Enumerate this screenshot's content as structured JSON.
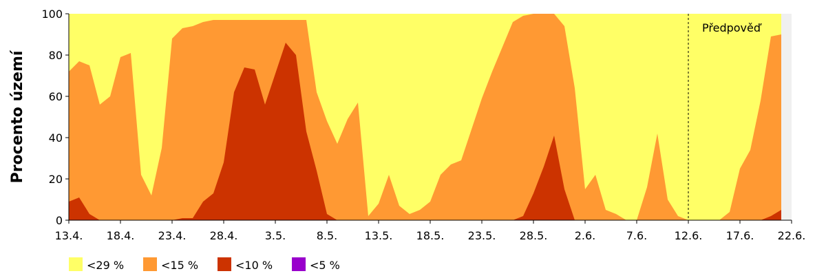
{
  "chart_data": {
    "type": "area",
    "y_label": "Procento území",
    "categories": [
      "13.4.",
      null,
      null,
      null,
      null,
      "18.4.",
      null,
      null,
      null,
      null,
      "23.4.",
      null,
      null,
      null,
      null,
      "28.4.",
      null,
      null,
      null,
      null,
      "3.5.",
      null,
      null,
      null,
      null,
      "8.5.",
      null,
      null,
      null,
      null,
      "13.5.",
      null,
      null,
      null,
      null,
      "18.5.",
      null,
      null,
      null,
      null,
      "23.5.",
      null,
      null,
      null,
      null,
      "28.5.",
      null,
      null,
      null,
      null,
      "2.6.",
      null,
      null,
      null,
      null,
      "7.6.",
      null,
      null,
      null,
      null,
      "12.6.",
      null,
      null,
      null,
      null,
      "17.6.",
      null,
      null,
      null,
      null,
      "22.6."
    ],
    "series": [
      {
        "name": "<29 %",
        "color": "#ffff66",
        "values": [
          100,
          100,
          100,
          100,
          100,
          100,
          100,
          100,
          100,
          100,
          100,
          100,
          100,
          100,
          100,
          100,
          100,
          100,
          100,
          100,
          100,
          100,
          100,
          100,
          100,
          100,
          100,
          100,
          100,
          100,
          100,
          100,
          100,
          100,
          100,
          100,
          100,
          100,
          100,
          100,
          100,
          100,
          100,
          100,
          100,
          100,
          100,
          100,
          100,
          100,
          100,
          100,
          100,
          100,
          100,
          100,
          100,
          100,
          100,
          100,
          100,
          100,
          100,
          100,
          100,
          100,
          100,
          100,
          100,
          100,
          null
        ]
      },
      {
        "name": "<15 %",
        "color": "#ff9933",
        "values": [
          72,
          77,
          75,
          56,
          60,
          79,
          81,
          22,
          12,
          35,
          88,
          93,
          94,
          96,
          97,
          97,
          97,
          97,
          97,
          97,
          97,
          97,
          97,
          97,
          62,
          48,
          37,
          49,
          57,
          2,
          8,
          22,
          7,
          3,
          5,
          9,
          22,
          27,
          29,
          44,
          59,
          72,
          84,
          96,
          99,
          100,
          100,
          100,
          94,
          64,
          15,
          22,
          5,
          3,
          0,
          0,
          16,
          42,
          10,
          2,
          0,
          0,
          0,
          0,
          4,
          25,
          34,
          58,
          89,
          90,
          null
        ]
      },
      {
        "name": "<10 %",
        "color": "#cc3300",
        "values": [
          9,
          11,
          3,
          0,
          0,
          0,
          0,
          0,
          0,
          0,
          0,
          1,
          1,
          9,
          13,
          28,
          62,
          74,
          73,
          56,
          71,
          86,
          80,
          43,
          24,
          3,
          0,
          0,
          0,
          0,
          0,
          0,
          0,
          0,
          0,
          0,
          0,
          0,
          0,
          0,
          0,
          0,
          0,
          0,
          2,
          13,
          26,
          41,
          15,
          0,
          0,
          0,
          0,
          0,
          0,
          0,
          0,
          0,
          0,
          0,
          0,
          0,
          0,
          0,
          0,
          0,
          0,
          0,
          2,
          5,
          null
        ]
      },
      {
        "name": "<5 %",
        "color": "#9900cc",
        "values": [
          0,
          0,
          0,
          0,
          0,
          0,
          0,
          0,
          0,
          0,
          0,
          0,
          0,
          0,
          0,
          0,
          0,
          0,
          0,
          0,
          0,
          0,
          0,
          0,
          0,
          0,
          0,
          0,
          0,
          0,
          0,
          0,
          0,
          0,
          0,
          0,
          0,
          0,
          0,
          0,
          0,
          0,
          0,
          0,
          0,
          0,
          0,
          0,
          0,
          0,
          0,
          0,
          0,
          0,
          0,
          0,
          0,
          0,
          0,
          0,
          0,
          0,
          0,
          0,
          0,
          0,
          0,
          0,
          0,
          0,
          null
        ]
      }
    ],
    "ylim": [
      0,
      100
    ],
    "yticks": [
      0,
      20,
      40,
      60,
      80,
      100
    ],
    "forecast": {
      "label": "Předpověď",
      "at": 60
    }
  }
}
